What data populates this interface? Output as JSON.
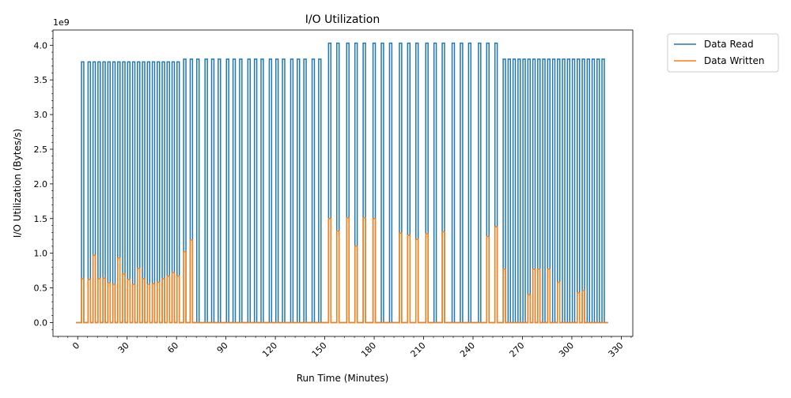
{
  "chart_data": {
    "type": "line",
    "title": "I/O Utilization",
    "xlabel": "Run Time (Minutes)",
    "ylabel": "I/O Utilization (Bytes/s)",
    "y_offset_label": "1e9",
    "y_multiplier": 1000000000,
    "xlim": [
      -15,
      337
    ],
    "ylim": [
      -0.2,
      4.22
    ],
    "xticks": [
      0,
      30,
      60,
      90,
      120,
      150,
      180,
      210,
      240,
      270,
      300,
      330
    ],
    "xtick_labels": [
      "0",
      "30",
      "60",
      "90",
      "120",
      "150",
      "180",
      "210",
      "240",
      "270",
      "300",
      "330"
    ],
    "yticks": [
      0.0,
      0.5,
      1.0,
      1.5,
      2.0,
      2.5,
      3.0,
      3.5,
      4.0
    ],
    "ytick_labels": [
      "0.0",
      "0.5",
      "1.0",
      "1.5",
      "2.0",
      "2.5",
      "3.0",
      "3.5",
      "4.0"
    ],
    "x_minor_step": 6,
    "y_minor_step": 0.1,
    "grid": false,
    "legend_position": "outside-top-right",
    "baseline": 0,
    "line_start": -1,
    "line_end": 322,
    "series": [
      {
        "name": "Data Read",
        "color": "#1f77b4",
        "spikes": [
          [
            3,
            3.76
          ],
          [
            7,
            3.76
          ],
          [
            10,
            3.76
          ],
          [
            13,
            3.76
          ],
          [
            16,
            3.76
          ],
          [
            19,
            3.76
          ],
          [
            22,
            3.76
          ],
          [
            25,
            3.76
          ],
          [
            28,
            3.76
          ],
          [
            31,
            3.76
          ],
          [
            34,
            3.76
          ],
          [
            37,
            3.76
          ],
          [
            40,
            3.76
          ],
          [
            43,
            3.76
          ],
          [
            46,
            3.76
          ],
          [
            49,
            3.76
          ],
          [
            52,
            3.76
          ],
          [
            55,
            3.76
          ],
          [
            58,
            3.76
          ],
          [
            61,
            3.76
          ],
          [
            65,
            3.8
          ],
          [
            69,
            3.8
          ],
          [
            73,
            3.8
          ],
          [
            78,
            3.8
          ],
          [
            82,
            3.8
          ],
          [
            86,
            3.8
          ],
          [
            91,
            3.8
          ],
          [
            95,
            3.8
          ],
          [
            99,
            3.8
          ],
          [
            104,
            3.8
          ],
          [
            108,
            3.8
          ],
          [
            112,
            3.8
          ],
          [
            117,
            3.8
          ],
          [
            121,
            3.8
          ],
          [
            125,
            3.8
          ],
          [
            130,
            3.8
          ],
          [
            134,
            3.8
          ],
          [
            138,
            3.8
          ],
          [
            143,
            3.8
          ],
          [
            147,
            3.8
          ],
          [
            153,
            4.03
          ],
          [
            158,
            4.03
          ],
          [
            164,
            4.03
          ],
          [
            169,
            4.03
          ],
          [
            174,
            4.03
          ],
          [
            180,
            4.03
          ],
          [
            185,
            4.03
          ],
          [
            190,
            4.03
          ],
          [
            196,
            4.03
          ],
          [
            201,
            4.03
          ],
          [
            206,
            4.03
          ],
          [
            212,
            4.03
          ],
          [
            217,
            4.03
          ],
          [
            222,
            4.03
          ],
          [
            228,
            4.03
          ],
          [
            233,
            4.03
          ],
          [
            238,
            4.03
          ],
          [
            244,
            4.03
          ],
          [
            249,
            4.03
          ],
          [
            254,
            4.03
          ],
          [
            259,
            3.8
          ],
          [
            262,
            3.8
          ],
          [
            265,
            3.8
          ],
          [
            268,
            3.8
          ],
          [
            271,
            3.8
          ],
          [
            274,
            3.8
          ],
          [
            277,
            3.8
          ],
          [
            280,
            3.8
          ],
          [
            283,
            3.8
          ],
          [
            286,
            3.8
          ],
          [
            289,
            3.8
          ],
          [
            292,
            3.8
          ],
          [
            295,
            3.8
          ],
          [
            298,
            3.8
          ],
          [
            301,
            3.8
          ],
          [
            304,
            3.8
          ],
          [
            307,
            3.8
          ],
          [
            310,
            3.8
          ],
          [
            313,
            3.8
          ],
          [
            316,
            3.8
          ],
          [
            319,
            3.8
          ]
        ]
      },
      {
        "name": "Data Written",
        "color": "#ff7f0e",
        "spikes": [
          [
            3,
            0.63
          ],
          [
            7,
            0.62
          ],
          [
            10,
            0.97
          ],
          [
            13,
            0.63
          ],
          [
            16,
            0.64
          ],
          [
            19,
            0.57
          ],
          [
            22,
            0.55
          ],
          [
            25,
            0.93
          ],
          [
            28,
            0.7
          ],
          [
            31,
            0.62
          ],
          [
            34,
            0.55
          ],
          [
            37,
            0.78
          ],
          [
            40,
            0.63
          ],
          [
            43,
            0.55
          ],
          [
            46,
            0.56
          ],
          [
            49,
            0.58
          ],
          [
            52,
            0.63
          ],
          [
            55,
            0.67
          ],
          [
            58,
            0.72
          ],
          [
            61,
            0.67
          ],
          [
            65,
            1.02
          ],
          [
            69,
            1.19
          ],
          [
            153,
            1.5
          ],
          [
            158,
            1.32
          ],
          [
            164,
            1.51
          ],
          [
            169,
            1.1
          ],
          [
            174,
            1.51
          ],
          [
            180,
            1.5
          ],
          [
            196,
            1.29
          ],
          [
            201,
            1.26
          ],
          [
            206,
            1.2
          ],
          [
            212,
            1.28
          ],
          [
            222,
            1.31
          ],
          [
            249,
            1.24
          ],
          [
            254,
            1.38
          ],
          [
            259,
            0.77
          ],
          [
            274,
            0.4
          ],
          [
            277,
            0.77
          ],
          [
            280,
            0.77
          ],
          [
            286,
            0.77
          ],
          [
            292,
            0.58
          ],
          [
            304,
            0.43
          ],
          [
            307,
            0.46
          ]
        ]
      }
    ]
  }
}
